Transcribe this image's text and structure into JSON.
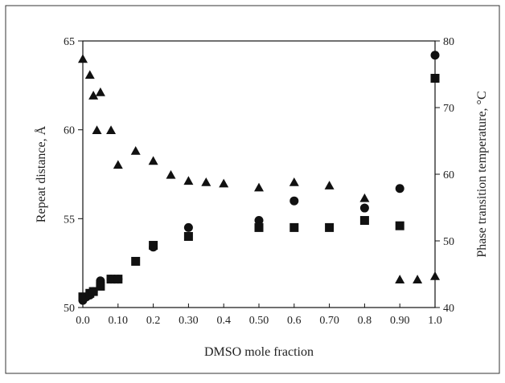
{
  "chart_data": {
    "type": "scatter",
    "xlabel": "DMSO mole fraction",
    "ylabel_left": "Repeat distance, Å",
    "ylabel_right": "Phase transition temperature, °C",
    "xlim": [
      0,
      1
    ],
    "ylim_left": [
      50,
      65
    ],
    "ylim_right": [
      40,
      80
    ],
    "x_ticks": [
      0,
      0.1,
      0.2,
      0.3,
      0.4,
      0.5,
      0.6,
      0.7,
      0.8,
      0.9,
      1.0
    ],
    "x_tick_labels": [
      "0.0",
      "0.10",
      "0.2",
      "0.30",
      "0.4",
      "0.50",
      "0.6",
      "0.70",
      "0.8",
      "0.90",
      "1.0"
    ],
    "y_left_ticks": [
      50,
      55,
      60,
      65
    ],
    "y_left_tick_labels": [
      "50",
      "55",
      "60",
      "65"
    ],
    "y_right_ticks": [
      40,
      50,
      60,
      70,
      80
    ],
    "y_right_tick_labels": [
      "40",
      "50",
      "60",
      "70",
      "80"
    ],
    "grid": false,
    "series": [
      {
        "marker": "circle",
        "axis": "left",
        "color": "#111111",
        "points": [
          [
            0.0,
            50.4
          ],
          [
            0.01,
            50.6
          ],
          [
            0.02,
            50.7
          ],
          [
            0.03,
            50.9
          ],
          [
            0.05,
            51.5
          ],
          [
            0.08,
            51.6
          ],
          [
            0.1,
            51.6
          ],
          [
            0.2,
            53.4
          ],
          [
            0.3,
            54.5
          ],
          [
            0.5,
            54.9
          ],
          [
            0.6,
            56.0
          ],
          [
            0.8,
            55.6
          ],
          [
            0.9,
            56.7
          ],
          [
            1.0,
            64.2
          ]
        ]
      },
      {
        "marker": "square",
        "axis": "left",
        "color": "#111111",
        "points": [
          [
            0.0,
            50.6
          ],
          [
            0.02,
            50.8
          ],
          [
            0.03,
            50.9
          ],
          [
            0.05,
            51.2
          ],
          [
            0.08,
            51.6
          ],
          [
            0.1,
            51.6
          ],
          [
            0.15,
            52.6
          ],
          [
            0.2,
            53.5
          ],
          [
            0.3,
            54.0
          ],
          [
            0.5,
            54.5
          ],
          [
            0.6,
            54.5
          ],
          [
            0.7,
            54.5
          ],
          [
            0.8,
            54.9
          ],
          [
            0.9,
            54.6
          ],
          [
            1.0,
            62.9
          ]
        ]
      },
      {
        "marker": "triangle",
        "axis": "right",
        "color": "#111111",
        "points": [
          [
            0.0,
            77.3
          ],
          [
            0.02,
            74.9
          ],
          [
            0.03,
            71.8
          ],
          [
            0.04,
            66.6
          ],
          [
            0.05,
            72.3
          ],
          [
            0.08,
            66.6
          ],
          [
            0.1,
            61.4
          ],
          [
            0.15,
            63.5
          ],
          [
            0.2,
            62.0
          ],
          [
            0.25,
            59.9
          ],
          [
            0.3,
            59.0
          ],
          [
            0.35,
            58.8
          ],
          [
            0.4,
            58.6
          ],
          [
            0.5,
            58.0
          ],
          [
            0.6,
            58.8
          ],
          [
            0.7,
            58.3
          ],
          [
            0.8,
            56.4
          ],
          [
            0.9,
            44.2
          ],
          [
            0.95,
            44.2
          ],
          [
            1.0,
            44.7
          ]
        ]
      }
    ]
  }
}
